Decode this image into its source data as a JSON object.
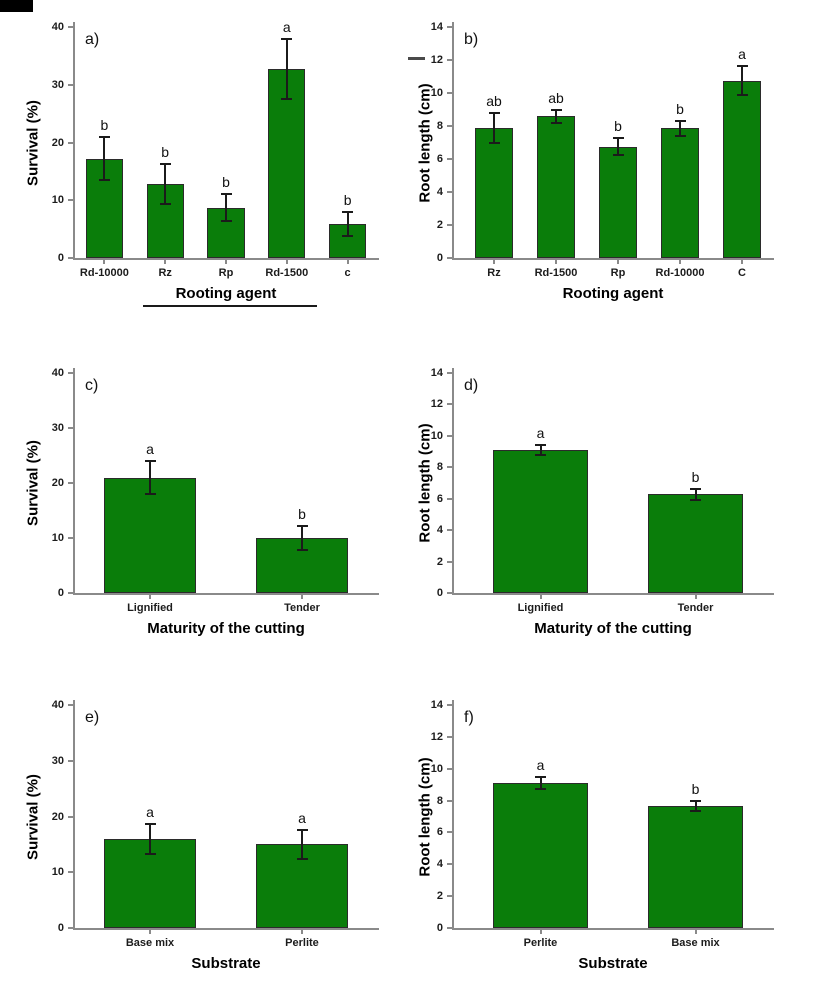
{
  "figure": {
    "background": "#ffffff",
    "bar_color": "#0a7d0a",
    "bar_border_color": "#2b2b2b",
    "axis_color": "#8a8a8a",
    "text_color": "#1c1c1c",
    "error_bar_color": "#1b1b1b",
    "artifacts": {
      "corner_mark_color": "#000000",
      "stray_dash_color": "#4a4a4a"
    }
  },
  "chart_data": [
    {
      "panel_label": "a)",
      "type": "bar",
      "ylabel": "Survival (%)",
      "xlabel": "Rooting agent",
      "xlabel_underlined": true,
      "ylim": [
        0,
        40
      ],
      "yticks": [
        0,
        10,
        20,
        30,
        40
      ],
      "grid": false,
      "categories": [
        "Rd-10000",
        "Rz",
        "Rp",
        "Rd-1500",
        "c"
      ],
      "values": [
        17.2,
        12.8,
        8.7,
        32.8,
        5.9
      ],
      "errors": [
        3.7,
        3.5,
        2.3,
        5.2,
        2.1
      ],
      "sig_letters": [
        "b",
        "b",
        "b",
        "a",
        "b"
      ]
    },
    {
      "panel_label": "b)",
      "type": "bar",
      "ylabel": "Root length (cm)",
      "xlabel": "Rooting agent",
      "xlabel_underlined": false,
      "ylim": [
        0,
        14
      ],
      "yticks": [
        0,
        2,
        4,
        6,
        8,
        10,
        12,
        14
      ],
      "grid": false,
      "categories": [
        "Rz",
        "Rd-1500",
        "Rp",
        "Rd-10000",
        "C"
      ],
      "values": [
        7.9,
        8.6,
        6.75,
        7.85,
        10.75
      ],
      "errors": [
        0.9,
        0.4,
        0.5,
        0.45,
        0.9
      ],
      "sig_letters": [
        "ab",
        "ab",
        "b",
        "b",
        "a"
      ]
    },
    {
      "panel_label": "c)",
      "type": "bar",
      "ylabel": "Survival (%)",
      "xlabel": "Maturity of the cutting",
      "xlabel_underlined": false,
      "ylim": [
        0,
        40
      ],
      "yticks": [
        0,
        10,
        20,
        30,
        40
      ],
      "grid": false,
      "categories": [
        "Lignified",
        "Tender"
      ],
      "values": [
        21,
        10
      ],
      "errors": [
        3,
        2.1
      ],
      "sig_letters": [
        "a",
        "b"
      ]
    },
    {
      "panel_label": "d)",
      "type": "bar",
      "ylabel": "Root length (cm)",
      "xlabel": "Maturity of the cutting",
      "xlabel_underlined": false,
      "ylim": [
        0,
        14
      ],
      "yticks": [
        0,
        2,
        4,
        6,
        8,
        10,
        12,
        14
      ],
      "grid": false,
      "categories": [
        "Lignified",
        "Tender"
      ],
      "values": [
        9.1,
        6.3
      ],
      "errors": [
        0.3,
        0.35
      ],
      "sig_letters": [
        "a",
        "b"
      ]
    },
    {
      "panel_label": "e)",
      "type": "bar",
      "ylabel": "Survival (%)",
      "xlabel": "Substrate",
      "xlabel_underlined": false,
      "ylim": [
        0,
        40
      ],
      "yticks": [
        0,
        10,
        20,
        30,
        40
      ],
      "grid": false,
      "categories": [
        "Base mix",
        "Perlite"
      ],
      "values": [
        16,
        15
      ],
      "errors": [
        2.7,
        2.6
      ],
      "sig_letters": [
        "a",
        "a"
      ]
    },
    {
      "panel_label": "f)",
      "type": "bar",
      "ylabel": "Root length (cm)",
      "xlabel": "Substrate",
      "xlabel_underlined": false,
      "ylim": [
        0,
        14
      ],
      "yticks": [
        0,
        2,
        4,
        6,
        8,
        10,
        12,
        14
      ],
      "grid": false,
      "categories": [
        "Perlite",
        "Base mix"
      ],
      "values": [
        9.1,
        7.65
      ],
      "errors": [
        0.35,
        0.3
      ],
      "sig_letters": [
        "a",
        "b"
      ]
    }
  ]
}
